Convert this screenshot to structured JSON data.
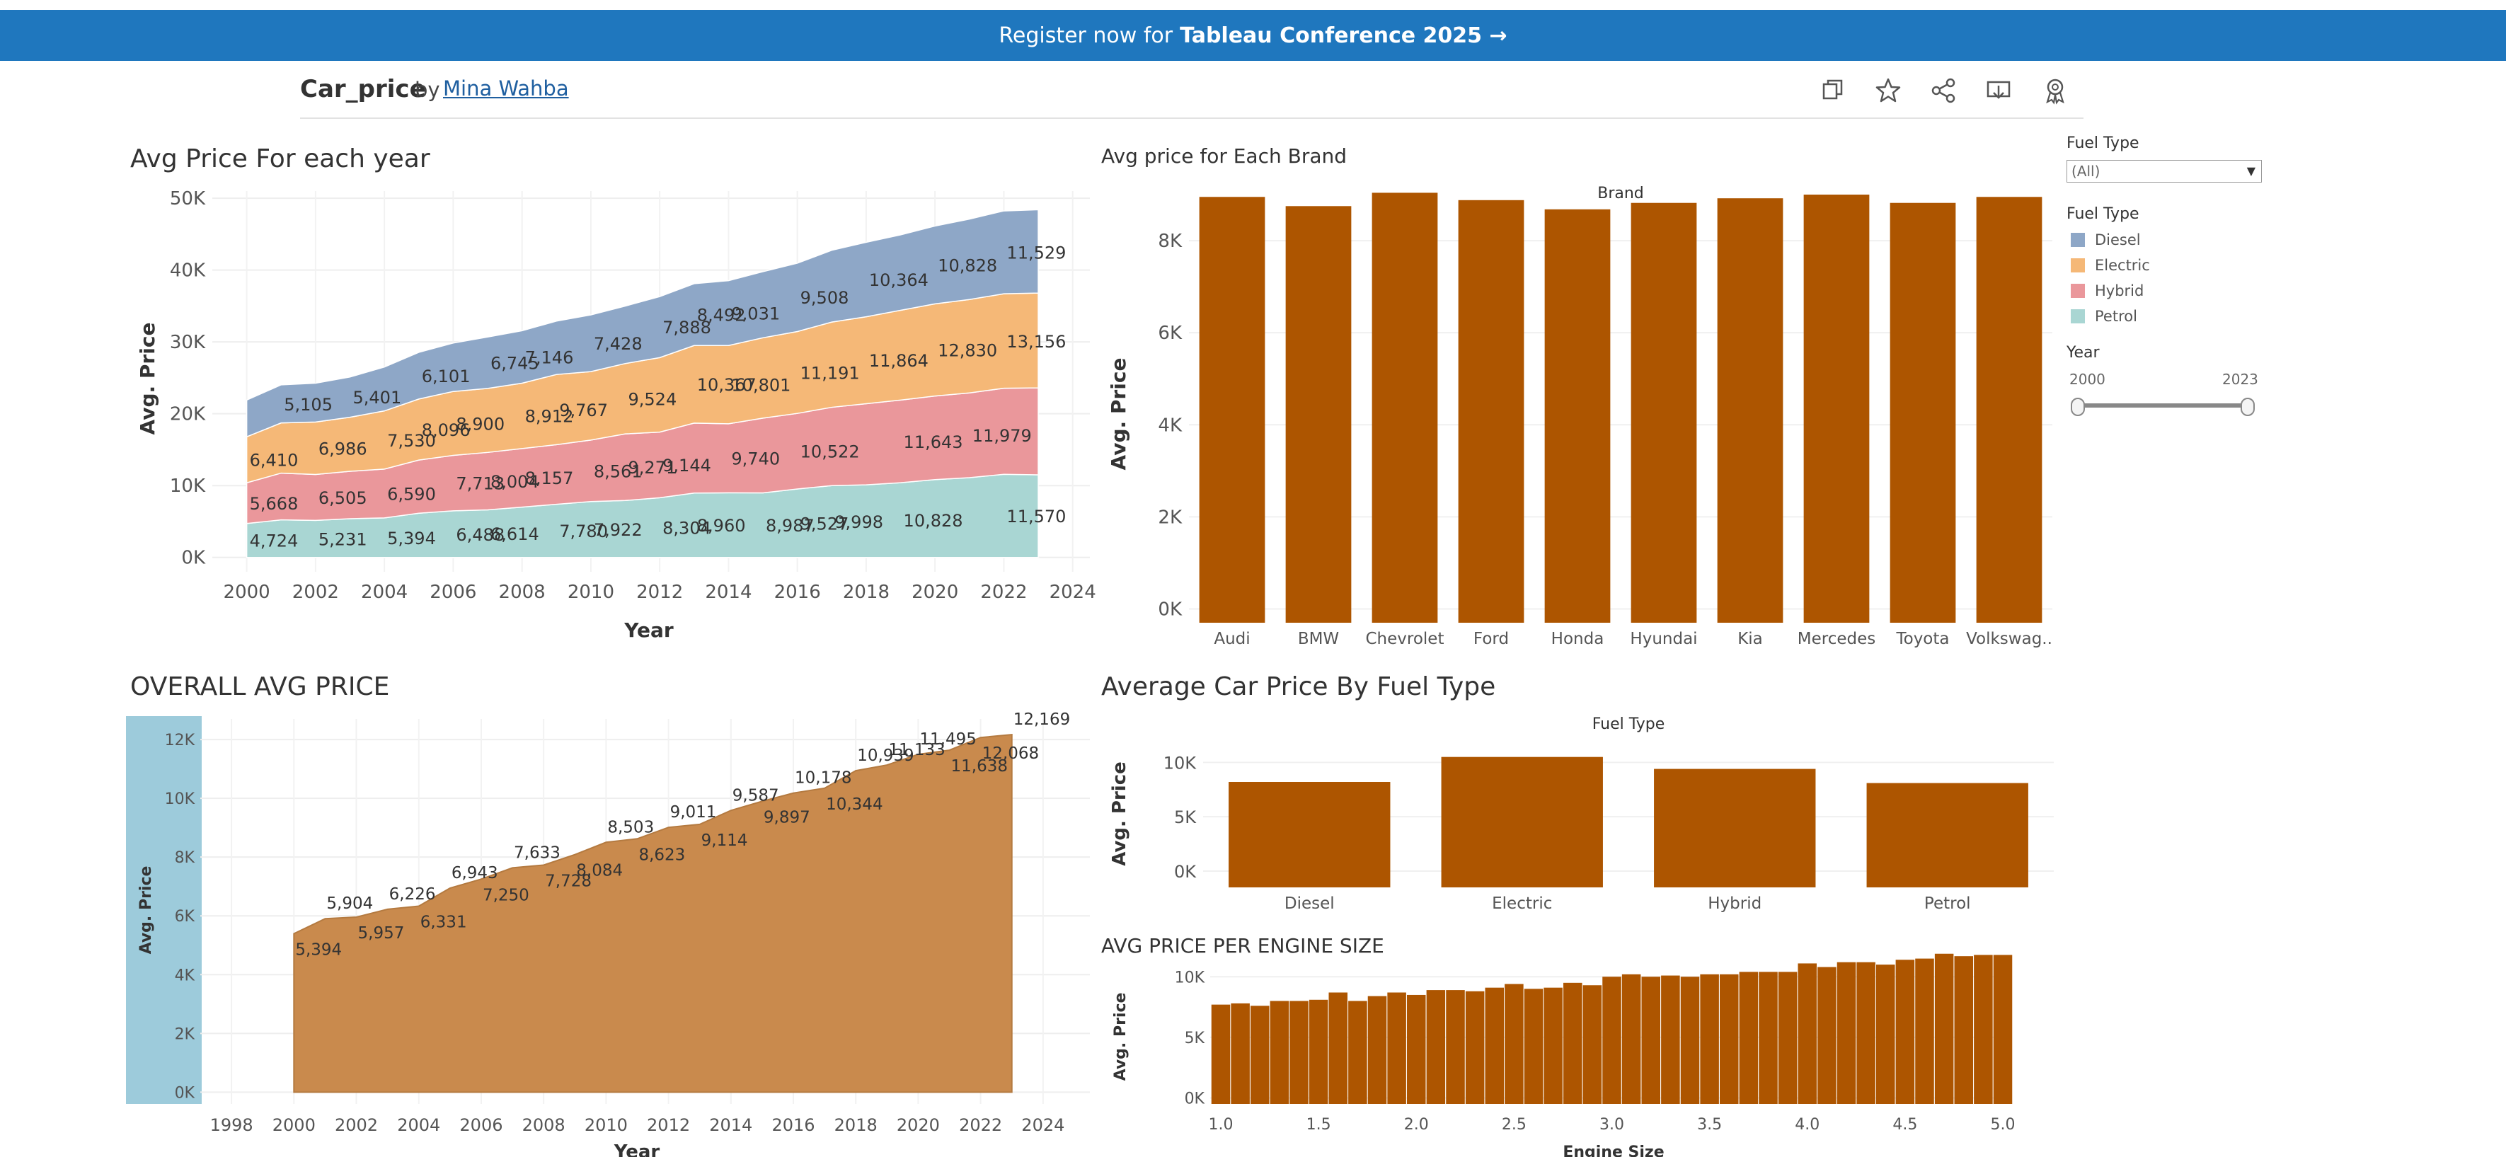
{
  "banner": {
    "prefix": "Register now for",
    "highlight": "Tableau Conference 2025 →"
  },
  "header": {
    "title": "Car_price",
    "by": "by",
    "author": "Mina Wahba",
    "icons": [
      "duplicate-icon",
      "favorite-star-icon",
      "share-icon",
      "download-icon",
      "badge-icon"
    ]
  },
  "colors": {
    "diesel": "#8ea7c7",
    "electric": "#f5b877",
    "hybrid": "#ea979b",
    "petrol": "#a9d6d3",
    "brand_bar": "#ad5500",
    "overall_fill": "#c98a4d",
    "overall_band": "#9dcbdb"
  },
  "filters": {
    "fuel_type_label": "Fuel Type",
    "fuel_type_value": "(All)",
    "legend_title": "Fuel Type",
    "legend": [
      "Diesel",
      "Electric",
      "Hybrid",
      "Petrol"
    ],
    "year_label": "Year",
    "year_min": "2000",
    "year_max": "2023"
  },
  "chart_data": [
    {
      "type": "area",
      "title": "Avg Price For each year",
      "xlabel": "Year",
      "ylabel": "Avg. Price",
      "stacked": true,
      "xlim": [
        1999,
        2024.5
      ],
      "ylim": [
        -2000,
        51000
      ],
      "x_ticks": [
        "2000",
        "2002",
        "2004",
        "2006",
        "2008",
        "2010",
        "2012",
        "2014",
        "2016",
        "2018",
        "2020",
        "2022",
        "2024"
      ],
      "y_ticks": [
        "0K",
        "10K",
        "20K",
        "30K",
        "40K",
        "50K"
      ],
      "x": [
        2000,
        2001,
        2002,
        2003,
        2004,
        2005,
        2006,
        2007,
        2008,
        2009,
        2010,
        2011,
        2012,
        2013,
        2014,
        2015,
        2016,
        2017,
        2018,
        2019,
        2020,
        2021,
        2022,
        2023
      ],
      "series": [
        {
          "name": "Petrol",
          "values": [
            4724,
            5231,
            5150,
            5394,
            5500,
            6150,
            6488,
            6614,
            7000,
            7400,
            7780,
            7922,
            8304,
            8960,
            9000,
            8987,
            9527,
            9998,
            10100,
            10400,
            10828,
            11100,
            11570,
            11500
          ]
        },
        {
          "name": "Hybrid",
          "values": [
            5668,
            6505,
            6400,
            6590,
            6800,
            7400,
            7713,
            8004,
            8157,
            8300,
            8561,
            9271,
            9144,
            9740,
            9600,
            10400,
            10522,
            10900,
            11300,
            11500,
            11643,
            11800,
            11979,
            12100
          ]
        },
        {
          "name": "Electric",
          "values": [
            6410,
            6986,
            7300,
            7530,
            8096,
            8500,
            8900,
            8912,
            9100,
            9767,
            9524,
            9800,
            10367,
            10801,
            10900,
            11191,
            11400,
            11864,
            12100,
            12500,
            12830,
            13000,
            13156,
            13200
          ]
        },
        {
          "name": "Diesel",
          "values": [
            5105,
            5300,
            5401,
            5600,
            6101,
            6500,
            6745,
            7146,
            7300,
            7428,
            7888,
            8000,
            8492,
            8600,
            9031,
            9200,
            9508,
            10000,
            10364,
            10500,
            10828,
            11200,
            11529,
            11600
          ]
        }
      ],
      "labels": {
        "Petrol": [
          [
            2000,
            "4,724"
          ],
          [
            2002,
            "5,231"
          ],
          [
            2004,
            "5,394"
          ],
          [
            2006,
            "6,488"
          ],
          [
            2007,
            "6,614"
          ],
          [
            2009,
            "7,780"
          ],
          [
            2010,
            "7,922"
          ],
          [
            2012,
            "8,304"
          ],
          [
            2013,
            "8,960"
          ],
          [
            2015,
            "8,987"
          ],
          [
            2016,
            "9,527"
          ],
          [
            2017,
            "9,998"
          ],
          [
            2019,
            "10,828"
          ],
          [
            2022,
            "11,570"
          ]
        ],
        "Hybrid": [
          [
            2000,
            "5,668"
          ],
          [
            2002,
            "6,505"
          ],
          [
            2004,
            "6,590"
          ],
          [
            2006,
            "7,713"
          ],
          [
            2007,
            "8,004"
          ],
          [
            2008,
            "8,157"
          ],
          [
            2010,
            "8,561"
          ],
          [
            2011,
            "9,271"
          ],
          [
            2012,
            "9,144"
          ],
          [
            2014,
            "9,740"
          ],
          [
            2016,
            "10,522"
          ],
          [
            2019,
            "11,643"
          ],
          [
            2021,
            "11,979"
          ]
        ],
        "Electric": [
          [
            2000,
            "6,410"
          ],
          [
            2002,
            "6,986"
          ],
          [
            2004,
            "7,530"
          ],
          [
            2005,
            "8,096"
          ],
          [
            2006,
            "8,900"
          ],
          [
            2008,
            "8,912"
          ],
          [
            2009,
            "9,767"
          ],
          [
            2011,
            "9,524"
          ],
          [
            2013,
            "10,367"
          ],
          [
            2014,
            "10,801"
          ],
          [
            2016,
            "11,191"
          ],
          [
            2018,
            "11,864"
          ],
          [
            2020,
            "12,830"
          ],
          [
            2022,
            "13,156"
          ]
        ],
        "Diesel": [
          [
            2001,
            "5,105"
          ],
          [
            2003,
            "5,401"
          ],
          [
            2005,
            "6,101"
          ],
          [
            2007,
            "6,745"
          ],
          [
            2008,
            "7,146"
          ],
          [
            2010,
            "7,428"
          ],
          [
            2012,
            "7,888"
          ],
          [
            2013,
            "8,492"
          ],
          [
            2014,
            "9,031"
          ],
          [
            2016,
            "9,508"
          ],
          [
            2018,
            "10,364"
          ],
          [
            2020,
            "10,828"
          ],
          [
            2022,
            "11,529"
          ]
        ]
      }
    },
    {
      "type": "bar",
      "title": "Avg price for Each Brand",
      "header": "Brand",
      "ylabel": "Avg. Price",
      "ylim": [
        -300,
        9200
      ],
      "y_ticks": [
        "0K",
        "2K",
        "4K",
        "6K",
        "8K"
      ],
      "categories": [
        "Audi",
        "BMW",
        "Chevrolet",
        "Ford",
        "Honda",
        "Hyundai",
        "Kia",
        "Mercedes",
        "Toyota",
        "Volkswag.."
      ],
      "values": [
        8950,
        8750,
        9040,
        8880,
        8680,
        8820,
        8920,
        9000,
        8820,
        8950
      ]
    },
    {
      "type": "area",
      "title": "OVERALL AVG PRICE",
      "xlabel": "Year",
      "ylabel": "Avg. Price",
      "xlim": [
        1997,
        2025.5
      ],
      "ylim": [
        -400,
        12700
      ],
      "x_ticks": [
        "1998",
        "2000",
        "2002",
        "2004",
        "2006",
        "2008",
        "2010",
        "2012",
        "2014",
        "2016",
        "2018",
        "2020",
        "2022",
        "2024"
      ],
      "y_ticks": [
        "0K",
        "2K",
        "4K",
        "6K",
        "8K",
        "10K",
        "12K"
      ],
      "x": [
        2000,
        2001,
        2002,
        2003,
        2004,
        2005,
        2006,
        2007,
        2008,
        2009,
        2010,
        2011,
        2012,
        2013,
        2014,
        2015,
        2016,
        2017,
        2018,
        2019,
        2020,
        2021,
        2022,
        2023
      ],
      "values": [
        5394,
        5904,
        5957,
        6226,
        6331,
        6943,
        7250,
        7633,
        7728,
        8084,
        8503,
        8623,
        9011,
        9114,
        9587,
        9897,
        10178,
        10344,
        10939,
        11133,
        11495,
        11638,
        12068,
        12169
      ],
      "labels": [
        [
          2000,
          "5,394",
          "below"
        ],
        [
          2001,
          "5,904",
          "above"
        ],
        [
          2002,
          "5,957",
          "below"
        ],
        [
          2003,
          "6,226",
          "above"
        ],
        [
          2004,
          "6,331",
          "below"
        ],
        [
          2005,
          "6,943",
          "above"
        ],
        [
          2006,
          "7,250",
          "below"
        ],
        [
          2007,
          "7,633",
          "above"
        ],
        [
          2008,
          "7,728",
          "below"
        ],
        [
          2009,
          "8,084",
          "below"
        ],
        [
          2010,
          "8,503",
          "above"
        ],
        [
          2011,
          "8,623",
          "below"
        ],
        [
          2012,
          "9,011",
          "above"
        ],
        [
          2013,
          "9,114",
          "below"
        ],
        [
          2014,
          "9,587",
          "above"
        ],
        [
          2015,
          "9,897",
          "below"
        ],
        [
          2016,
          "10,178",
          "above"
        ],
        [
          2017,
          "10,344",
          "below"
        ],
        [
          2018,
          "10,939",
          "above"
        ],
        [
          2019,
          "11,133",
          "above"
        ],
        [
          2020,
          "11,495",
          "above"
        ],
        [
          2021,
          "11,638",
          "below"
        ],
        [
          2022,
          "12,068",
          "below"
        ],
        [
          2023,
          "12,169",
          "above"
        ]
      ]
    },
    {
      "type": "bar",
      "title": "Average Car Price By Fuel Type",
      "header": "Fuel Type",
      "ylabel": "Avg. Price",
      "ylim": [
        -1500,
        11000
      ],
      "y_ticks": [
        "0K",
        "5K",
        "10K"
      ],
      "categories": [
        "Diesel",
        "Electric",
        "Hybrid",
        "Petrol"
      ],
      "values": [
        8200,
        10500,
        9400,
        8100
      ]
    },
    {
      "type": "bar",
      "title": "AVG PRICE PER ENGINE SIZE",
      "xlabel": "Engine Size",
      "ylabel": "Avg. Price",
      "ylim": [
        -500,
        10600
      ],
      "y_ticks": [
        "0K",
        "5K",
        "10K"
      ],
      "x_ticks": [
        "1.0",
        "1.5",
        "2.0",
        "2.5",
        "3.0",
        "3.5",
        "4.0",
        "4.5",
        "5.0"
      ],
      "x": [
        1.0,
        1.1,
        1.2,
        1.3,
        1.4,
        1.5,
        1.6,
        1.7,
        1.8,
        1.9,
        2.0,
        2.1,
        2.2,
        2.3,
        2.4,
        2.5,
        2.6,
        2.7,
        2.8,
        2.9,
        3.0,
        3.1,
        3.2,
        3.3,
        3.4,
        3.5,
        3.6,
        3.7,
        3.8,
        3.9,
        4.0,
        4.1,
        4.2,
        4.3,
        4.4,
        4.5,
        4.6,
        4.7,
        4.8,
        4.9,
        5.0
      ],
      "values": [
        7700,
        7800,
        7600,
        8000,
        8000,
        8100,
        8700,
        8000,
        8400,
        8700,
        8500,
        8900,
        8900,
        8800,
        9100,
        9400,
        9000,
        9100,
        9500,
        9300,
        10000,
        10200,
        10000,
        10100,
        10000,
        10200,
        10200,
        10400,
        10400,
        10400,
        11100,
        10800,
        11200,
        11200,
        11000,
        11400,
        11500,
        11900,
        11700,
        11800,
        11800
      ]
    }
  ]
}
